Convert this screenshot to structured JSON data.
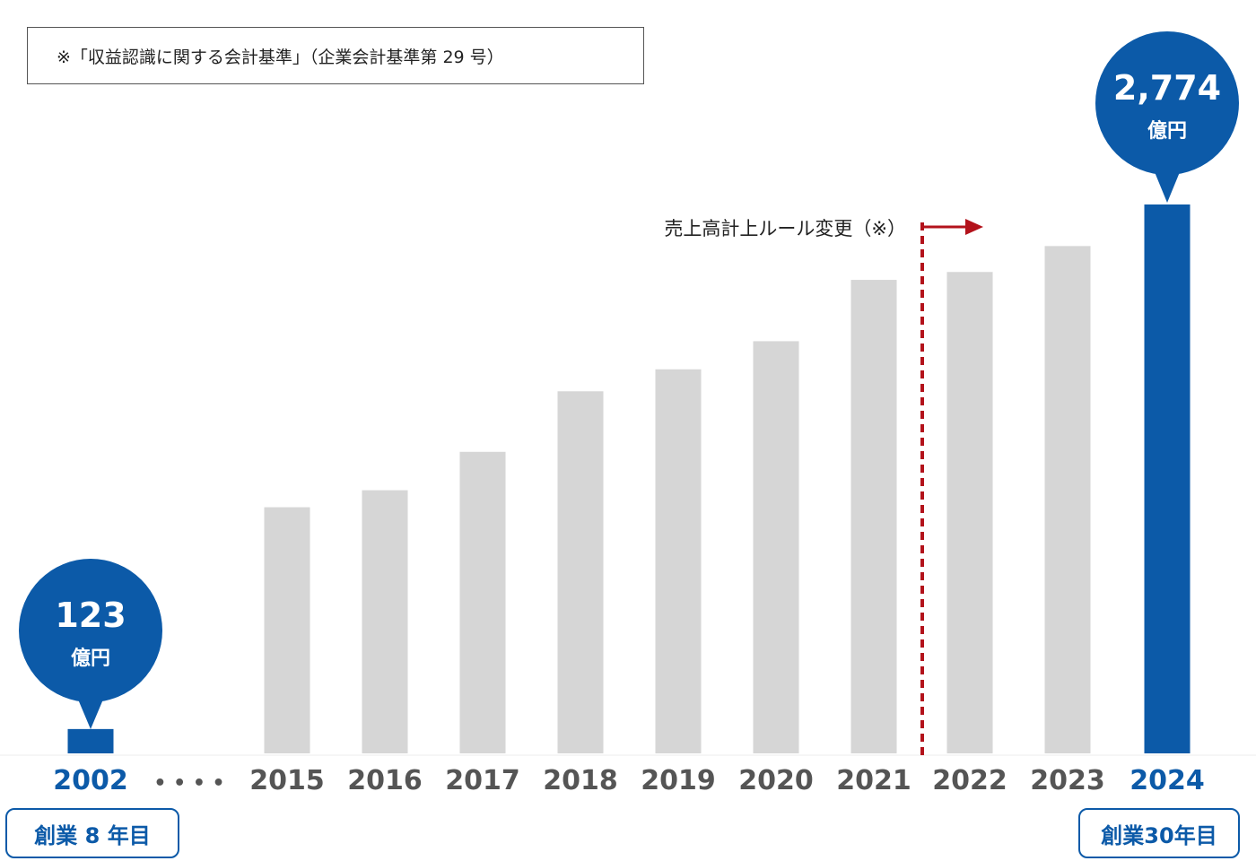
{
  "note": "※「収益認識に関する会計基準」（企業会計基準第 29 号）",
  "badges": {
    "start": "創業 8 年目",
    "end": "創業30年目"
  },
  "rule_change_label": "売上高計上ルール変更（※）",
  "ellipsis": "• • • •",
  "callouts": [
    {
      "value": "123",
      "unit": "億円"
    },
    {
      "value": "2,774",
      "unit": "億円"
    }
  ],
  "colors": {
    "highlight": "#0c5aa8",
    "muted": "#d6d6d6",
    "rule_change": "#b3121b"
  },
  "chart_data": {
    "type": "bar",
    "categories": [
      "2002",
      "2015",
      "2016",
      "2017",
      "2018",
      "2019",
      "2020",
      "2021",
      "2022",
      "2023",
      "2024"
    ],
    "values": [
      123,
      1244,
      1330,
      1524,
      1830,
      1941,
      2083,
      2393,
      2433,
      2564,
      2774
    ],
    "highlighted": [
      "2002",
      "2024"
    ],
    "axis_break_after": "2002",
    "rule_change_between": [
      "2021",
      "2022"
    ],
    "ylim": [
      0,
      2774
    ],
    "title": "",
    "xlabel": "",
    "ylabel": ""
  }
}
